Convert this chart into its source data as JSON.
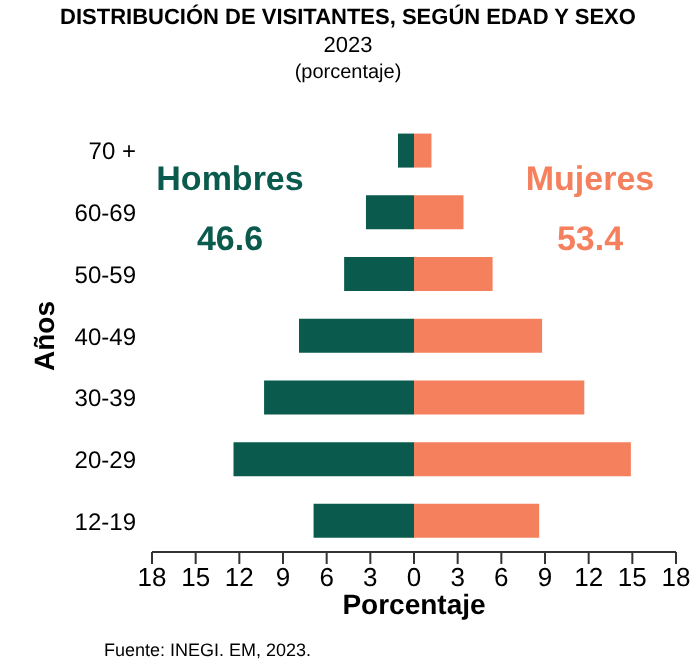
{
  "chart_data": {
    "type": "bar",
    "orientation": "horizontal",
    "stacked": true,
    "title": "DISTRIBUCIÓN DE VISITANTES, SEGÚN EDAD Y SEXO",
    "subtitle": "2023",
    "xlabel": "Porcentaje",
    "ylabel": "Años",
    "categories": [
      "70 +",
      "60-69",
      "50-59",
      "40-49",
      "30-39",
      "20-29",
      "12-19"
    ],
    "series": [
      {
        "name": "Hombres",
        "color": "#0b5a4e",
        "values": [
          -1.1,
          -3.3,
          -4.8,
          -7.9,
          -10.3,
          -12.4,
          -6.9
        ]
      },
      {
        "name": "Mujeres",
        "color": "#f5805e",
        "values": [
          1.2,
          3.4,
          5.4,
          8.8,
          11.7,
          14.9,
          8.6
        ]
      }
    ],
    "xlim": [
      -18,
      18
    ],
    "xticks": [
      {
        "value": -18,
        "label": "18"
      },
      {
        "value": -15,
        "label": "15"
      },
      {
        "value": -12,
        "label": "12"
      },
      {
        "value": -9,
        "label": "9"
      },
      {
        "value": -6,
        "label": "6"
      },
      {
        "value": -3,
        "label": "3"
      },
      0,
      3,
      6,
      9,
      12,
      15,
      18
    ],
    "annotations": [
      "(porcentaje)",
      "46.6",
      "53.4",
      "Fuente: INEGI. EM, 2023."
    ],
    "grid": false,
    "legend": false
  }
}
